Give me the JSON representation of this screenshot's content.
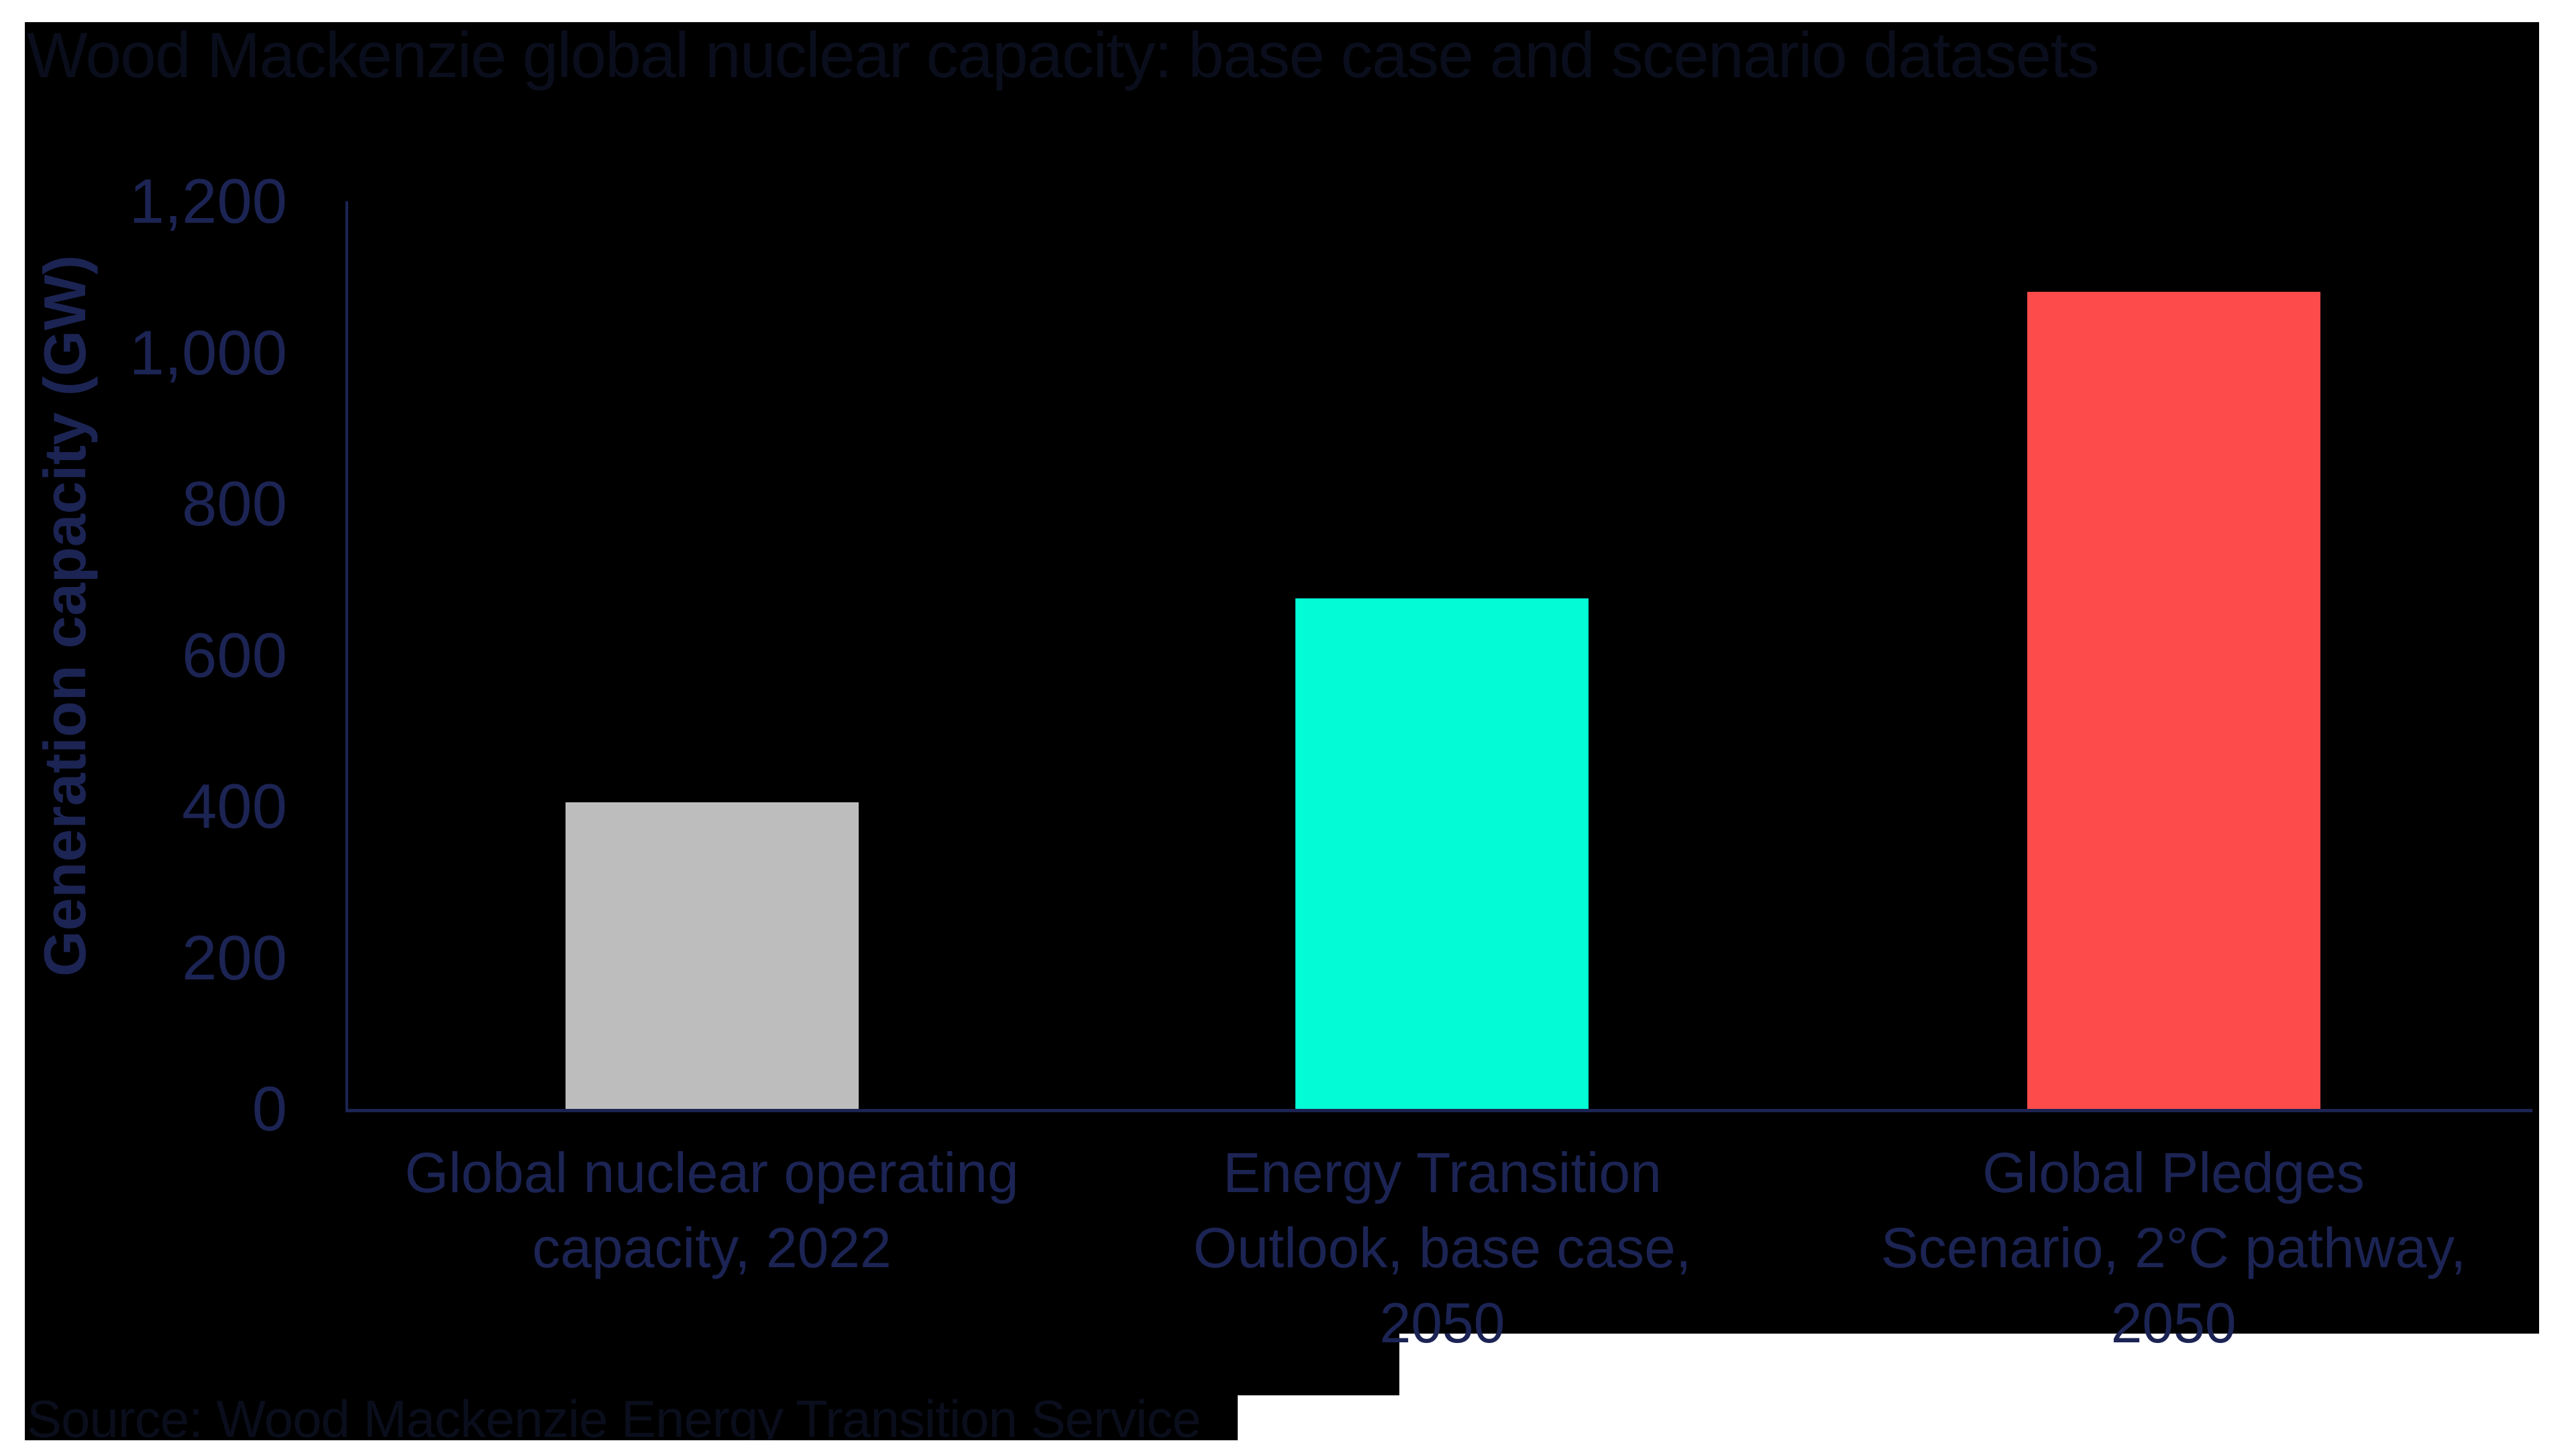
{
  "page": {
    "background": "#ffffff",
    "image_background": "#000000"
  },
  "chart_data": {
    "type": "bar",
    "title": "Wood Mackenzie global nuclear capacity: base case and scenario datasets",
    "ylabel": "Generation capacity (GW)",
    "xlabel": "",
    "ylim": [
      0,
      1200
    ],
    "ytick_labels": [
      "1,200",
      "1,000",
      "800",
      "600",
      "400",
      "200",
      "0"
    ],
    "ytick_values": [
      1200,
      1000,
      800,
      600,
      400,
      200,
      0
    ],
    "categories": [
      "Global nuclear operating\ncapacity, 2022",
      "Energy Transition\nOutlook, base case,\n2050",
      "Global Pledges\nScenario, 2°C pathway,\n2050"
    ],
    "values": [
      405,
      675,
      1080
    ],
    "bar_colors": [
      "#bdbdbe",
      "#03fcd6",
      "#fd4b4b"
    ],
    "axis_color": "#1c2454",
    "tick_label_color": "#1c2454",
    "category_label_color": "#1c2454",
    "title_color": "#0a0e1c",
    "source_color": "#0a0e1c",
    "grid": false,
    "legend": false,
    "source": "Source: Wood Mackenzie Energy Transition Service"
  }
}
